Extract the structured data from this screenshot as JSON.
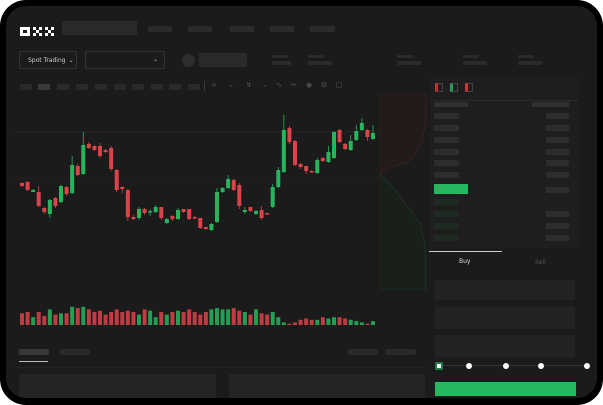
{
  "header": {
    "logo": "OKX"
  },
  "toolbar": {
    "market_selector": "Spot Trading",
    "pair_selector": ""
  },
  "chart_toolbar": {
    "icons": [
      "line-icon",
      "ruler-icon",
      "camera-icon",
      "settings-icon",
      "fullscreen-icon"
    ]
  },
  "orderbook": {
    "view_icons": [
      "both-sides-icon",
      "bids-icon",
      "asks-icon"
    ]
  },
  "trade": {
    "tabs": [
      {
        "label": "Buy",
        "active": true
      },
      {
        "label": "Sell",
        "active": false
      }
    ],
    "slider_percent": 0
  },
  "colors": {
    "up": "#26b55d",
    "down": "#d9434a",
    "buy_button": "#25b85f"
  },
  "chart_data": {
    "type": "candlestick",
    "fields": [
      "open",
      "close",
      "high",
      "low",
      "volume"
    ],
    "candles": [
      [
        67,
        64,
        68,
        63,
        9
      ],
      [
        68,
        60,
        69,
        59,
        10
      ],
      [
        58,
        60,
        61,
        58,
        6
      ],
      [
        58,
        44,
        64,
        43,
        10
      ],
      [
        42,
        38,
        43,
        36,
        7
      ],
      [
        36,
        50,
        51,
        32,
        12
      ],
      [
        52,
        44,
        53,
        42,
        8
      ],
      [
        48,
        64,
        65,
        47,
        9
      ],
      [
        63,
        56,
        64,
        54,
        9
      ],
      [
        57,
        85,
        94,
        56,
        14
      ],
      [
        84,
        75,
        86,
        74,
        13
      ],
      [
        76,
        105,
        118,
        75,
        14
      ],
      [
        106,
        102,
        108,
        101,
        12
      ],
      [
        104,
        100,
        105,
        99,
        10
      ],
      [
        104,
        94,
        107,
        92,
        11
      ],
      [
        100,
        98,
        101,
        97,
        8
      ],
      [
        102,
        81,
        104,
        79,
        10
      ],
      [
        80,
        60,
        81,
        58,
        12
      ],
      [
        63,
        61,
        64,
        57,
        10
      ],
      [
        60,
        33,
        61,
        29,
        11
      ],
      [
        33,
        31,
        35,
        30,
        10
      ],
      [
        32,
        41,
        43,
        30,
        8
      ],
      [
        41,
        37,
        42,
        35,
        12
      ],
      [
        38,
        39,
        41,
        34,
        11
      ],
      [
        38,
        43,
        45,
        37,
        6
      ],
      [
        43,
        32,
        43,
        30,
        10
      ],
      [
        27,
        31,
        32,
        26,
        8
      ],
      [
        34,
        31,
        35,
        29,
        10
      ],
      [
        31,
        40,
        42,
        30,
        11
      ],
      [
        41,
        38,
        41,
        37,
        10
      ],
      [
        41,
        31,
        41,
        30,
        12
      ],
      [
        33,
        32,
        34,
        31,
        10
      ],
      [
        32,
        22,
        32,
        21,
        8
      ],
      [
        23,
        21,
        23,
        20,
        10
      ],
      [
        20,
        26,
        27,
        19,
        12
      ],
      [
        28,
        58,
        62,
        27,
        13
      ],
      [
        58,
        62,
        63,
        57,
        12
      ],
      [
        62,
        71,
        75,
        61,
        12
      ],
      [
        70,
        60,
        71,
        59,
        13
      ],
      [
        65,
        44,
        67,
        41,
        11
      ],
      [
        38,
        40,
        43,
        36,
        10
      ],
      [
        43,
        39,
        43,
        38,
        8
      ],
      [
        36,
        39,
        40,
        35,
        12
      ],
      [
        40,
        32,
        44,
        30,
        9
      ],
      [
        37,
        36,
        37,
        35,
        8
      ],
      [
        43,
        63,
        66,
        42,
        10
      ],
      [
        63,
        80,
        83,
        62,
        6
      ],
      [
        78,
        120,
        135,
        77,
        2
      ],
      [
        122,
        108,
        124,
        106,
        1
      ],
      [
        109,
        85,
        110,
        84,
        2
      ],
      [
        86,
        83,
        87,
        81,
        4
      ],
      [
        84,
        79,
        84,
        76,
        5
      ],
      [
        79,
        78,
        80,
        77,
        4
      ],
      [
        77,
        90,
        92,
        76,
        4
      ],
      [
        92,
        89,
        93,
        88,
        6
      ],
      [
        88,
        98,
        104,
        87,
        5
      ],
      [
        92,
        118,
        119,
        91,
        6
      ],
      [
        120,
        108,
        121,
        107,
        6
      ],
      [
        106,
        101,
        107,
        100,
        5
      ],
      [
        100,
        109,
        115,
        99,
        4
      ],
      [
        110,
        119,
        125,
        109,
        3
      ],
      [
        120,
        127,
        132,
        119,
        2
      ],
      [
        120,
        113,
        121,
        109,
        1
      ],
      [
        111,
        117,
        125,
        110,
        3
      ]
    ]
  }
}
